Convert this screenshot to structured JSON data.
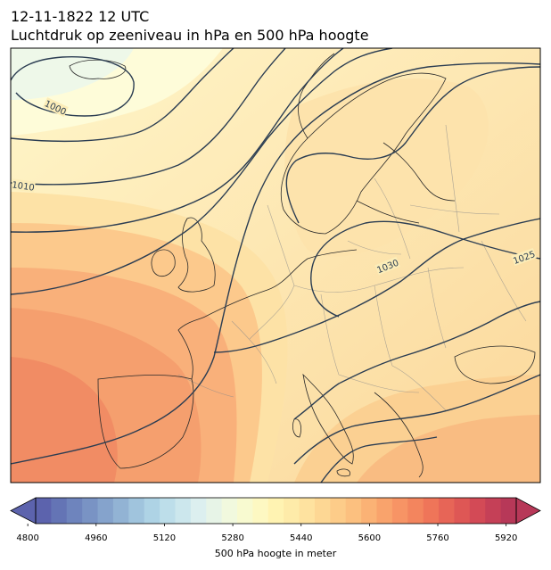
{
  "header": {
    "datetime": "12-11-1822 12 UTC",
    "subtitle": "Luchtdruk op zeeniveau in hPa en 500 hPa hoogte"
  },
  "map": {
    "region": "Europe",
    "projection": "plate-carree",
    "filled_field": "500 hPa geopotential height",
    "contour_field": "mean sea level pressure",
    "contour_color": "#2b3d52",
    "border_color": "#8a8a8a",
    "coast_color": "#2a2a2a",
    "isobar_labels": [
      "1000",
      "1010",
      "1025",
      "1030"
    ]
  },
  "colorbar": {
    "label": "500 hPa hoogte in meter",
    "ticks": [
      "4800",
      "4960",
      "5120",
      "5280",
      "5440",
      "5600",
      "5760",
      "5920"
    ],
    "min": 4760,
    "max": 6000,
    "colormap": "RdYlBu_r",
    "extend": "both"
  }
}
